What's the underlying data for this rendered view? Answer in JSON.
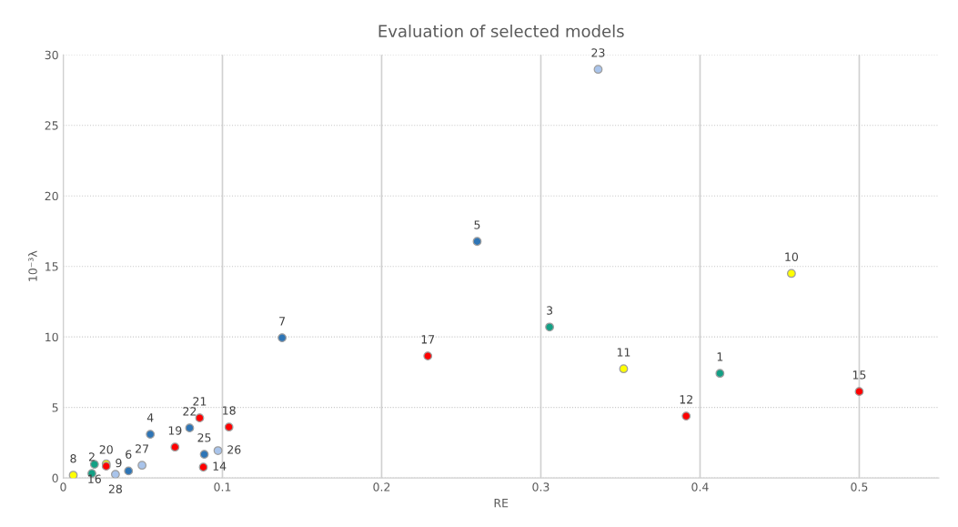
{
  "chart_data": {
    "type": "scatter",
    "title": "Evaluation of selected models",
    "xlabel": "RE",
    "ylabel": "10⁻³λ",
    "xlim": [
      0,
      0.55
    ],
    "xticks": [
      0,
      0.1,
      0.2,
      0.3,
      0.4,
      0.5
    ],
    "ylim": [
      0,
      30
    ],
    "yticks": [
      0,
      5,
      10,
      15,
      20,
      25,
      30
    ],
    "grid": true,
    "marker": "circle",
    "series": [
      {
        "color": "#2e75b6",
        "x": [
          0.0547,
          0.26,
          0.041,
          0.1375,
          0.0794,
          0.0886
        ],
        "values": [
          3.1,
          16.77,
          0.5,
          9.94,
          3.55,
          1.68
        ]
      },
      {
        "color": "#ffff00",
        "x": [
          0.0063,
          0.027,
          0.4574,
          0.352
        ],
        "values": [
          0.2,
          1.0,
          14.5,
          7.74
        ]
      },
      {
        "color": "#ff0000",
        "x": [
          0.3913,
          0.088,
          0.5,
          0.229,
          0.1041,
          0.0702,
          0.027,
          0.0857
        ],
        "values": [
          4.39,
          0.77,
          6.13,
          8.65,
          3.61,
          2.19,
          0.84,
          4.26
        ]
      },
      {
        "color": "#13a085",
        "x": [
          0.4125,
          0.018,
          0.3055,
          0.0196
        ],
        "values": [
          7.42,
          0.32,
          10.7,
          0.97
        ]
      },
      {
        "color": "#a9c4eb",
        "x": [
          0.336,
          0.0972,
          0.0495,
          0.0328
        ],
        "values": [
          28.97,
          1.94,
          0.9,
          0.26
        ]
      }
    ],
    "annotations": [
      {
        "text": "4",
        "x": 0.0547,
        "y": 3.1
      },
      {
        "text": "5",
        "x": 0.26,
        "y": 16.77
      },
      {
        "text": "6",
        "x": 0.041,
        "y": 0.5
      },
      {
        "text": "7",
        "x": 0.1375,
        "y": 9.94
      },
      {
        "text": "22",
        "x": 0.0794,
        "y": 3.55
      },
      {
        "text": "25",
        "x": 0.0886,
        "y": 1.68
      },
      {
        "text": "12",
        "x": 0.3913,
        "y": 4.39
      },
      {
        "text": "14",
        "x": 0.088,
        "y": 0.77
      },
      {
        "text": "15",
        "x": 0.5,
        "y": 6.13
      },
      {
        "text": "17",
        "x": 0.229,
        "y": 8.65
      },
      {
        "text": "18",
        "x": 0.1041,
        "y": 3.61
      },
      {
        "text": "19",
        "x": 0.0702,
        "y": 2.19
      },
      {
        "text": "20",
        "x": 0.027,
        "y": 0.84
      },
      {
        "text": "21",
        "x": 0.0857,
        "y": 4.26
      },
      {
        "text": "8",
        "x": 0.0063,
        "y": 0.2
      },
      {
        "text": "9",
        "x": 0.027,
        "y": 1.0
      },
      {
        "text": "10",
        "x": 0.4574,
        "y": 14.5
      },
      {
        "text": "11",
        "x": 0.352,
        "y": 7.74
      },
      {
        "text": "1",
        "x": 0.4125,
        "y": 7.42
      },
      {
        "text": "2",
        "x": 0.018,
        "y": 0.32
      },
      {
        "text": "3",
        "x": 0.3055,
        "y": 10.7
      },
      {
        "text": "16",
        "x": 0.0196,
        "y": 0.97
      },
      {
        "text": "23",
        "x": 0.336,
        "y": 28.97
      },
      {
        "text": "26",
        "x": 0.0972,
        "y": 1.94
      },
      {
        "text": "27",
        "x": 0.0495,
        "y": 0.9
      },
      {
        "text": "28",
        "x": 0.0328,
        "y": 0.26
      }
    ]
  }
}
